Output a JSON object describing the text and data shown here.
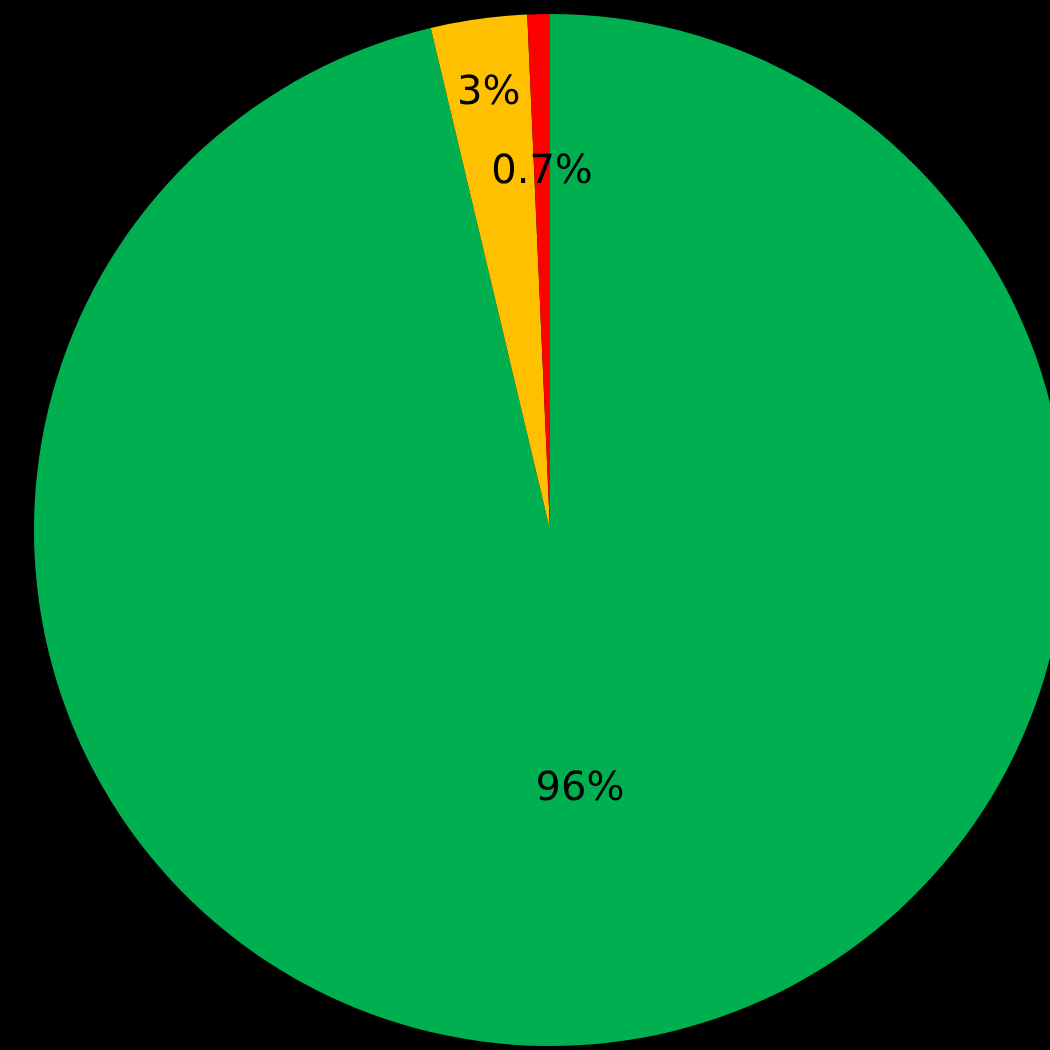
{
  "chart_data": {
    "type": "pie",
    "categories": [
      null,
      null,
      null
    ],
    "values": [
      96,
      3,
      0.7
    ],
    "colors": [
      "#00b050",
      "#ffc000",
      "#ff0000"
    ],
    "value_labels": [
      "96%",
      "3%",
      "0.7%"
    ]
  }
}
